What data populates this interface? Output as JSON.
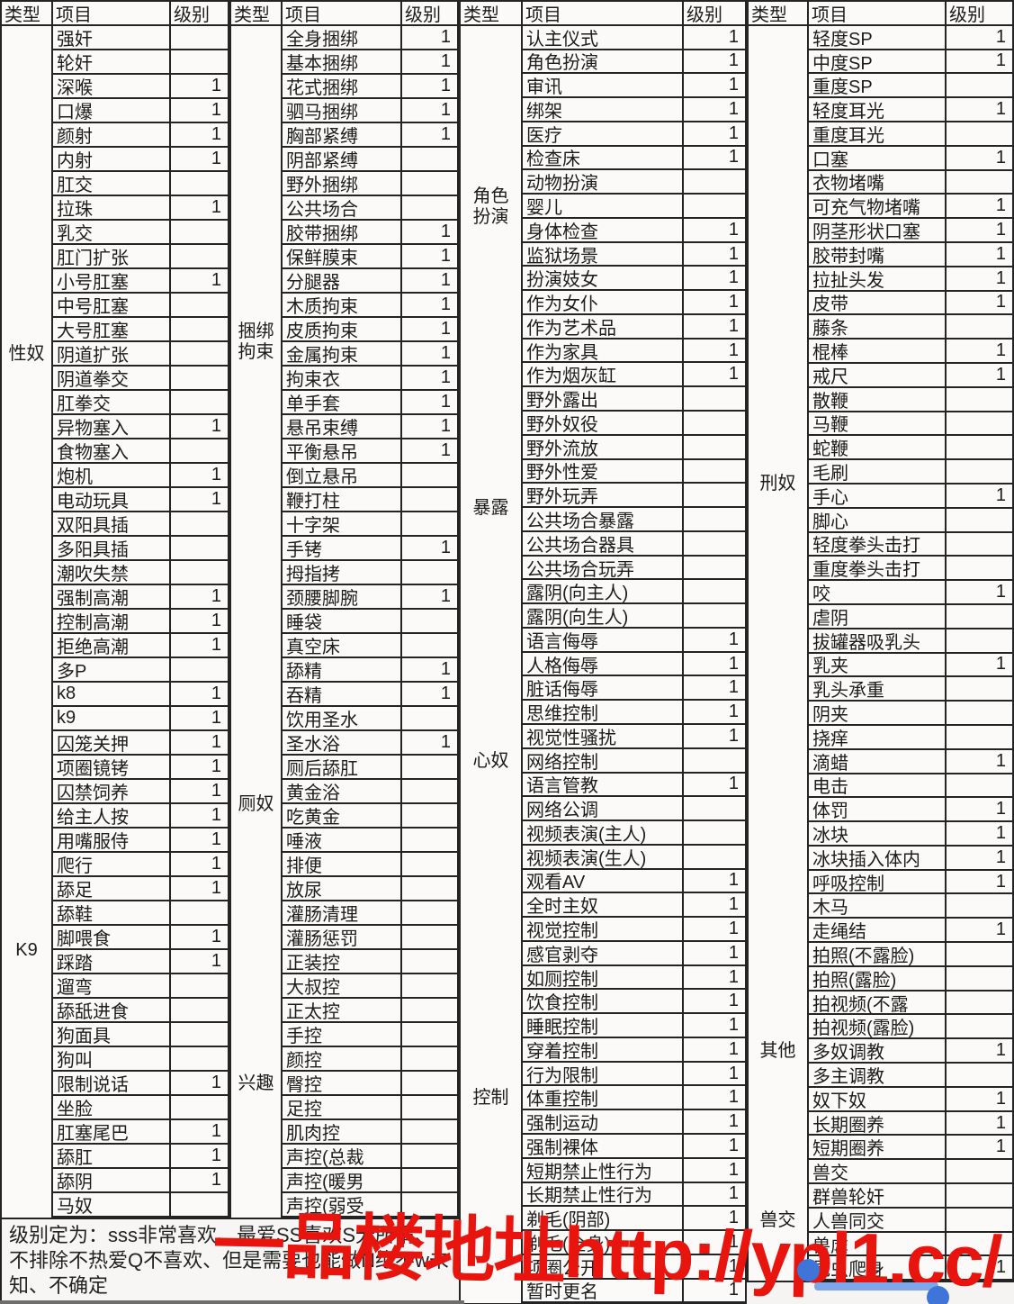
{
  "header": {
    "type": "类型",
    "item": "项目",
    "level": "级别"
  },
  "legend": {
    "text": "级别定为：sss非常喜欢、最爱SS喜欢S无所谓、不排除不热爱Q不喜欢、但是需要也能做N绝不w未知、不确定"
  },
  "watermark": {
    "text": "一品楼地址http://ypl1.cc/",
    "color": "#e8140e"
  },
  "selection": {
    "accent_color": "#3f74d8"
  },
  "columns": [
    {
      "sections": [
        {
          "category": "性奴",
          "items": [
            [
              "强奸",
              ""
            ],
            [
              "轮奸",
              ""
            ],
            [
              "深喉",
              "1"
            ],
            [
              "口爆",
              "1"
            ],
            [
              "颜射",
              "1"
            ],
            [
              "内射",
              "1"
            ],
            [
              "肛交",
              ""
            ],
            [
              "拉珠",
              "1"
            ],
            [
              "乳交",
              ""
            ],
            [
              "肛门扩张",
              ""
            ],
            [
              "小号肛塞",
              "1"
            ],
            [
              "中号肛塞",
              ""
            ],
            [
              "大号肛塞",
              ""
            ],
            [
              "阴道扩张",
              ""
            ],
            [
              "阴道拳交",
              ""
            ],
            [
              "肛拳交",
              ""
            ],
            [
              "异物塞入",
              "1"
            ],
            [
              "食物塞入",
              ""
            ],
            [
              "炮机",
              "1"
            ],
            [
              "电动玩具",
              "1"
            ],
            [
              "双阳具插",
              ""
            ],
            [
              "多阳具插",
              ""
            ],
            [
              "潮吹失禁",
              ""
            ],
            [
              "强制高潮",
              "1"
            ],
            [
              "控制高潮",
              "1"
            ],
            [
              "拒绝高潮",
              "1"
            ],
            [
              "多P",
              ""
            ]
          ]
        },
        {
          "category": "K9",
          "items": [
            [
              "k8",
              "1"
            ],
            [
              "k9",
              "1"
            ],
            [
              "囚笼关押",
              "1"
            ],
            [
              "项圈镜铐",
              "1"
            ],
            [
              "囚禁饲养",
              "1"
            ],
            [
              "给主人按",
              "1"
            ],
            [
              "用嘴服侍",
              "1"
            ],
            [
              "爬行",
              "1"
            ],
            [
              "舔足",
              "1"
            ],
            [
              "舔鞋",
              ""
            ],
            [
              "脚喂食",
              "1"
            ],
            [
              "踩踏",
              "1"
            ],
            [
              "遛弯",
              ""
            ],
            [
              "舔舐进食",
              ""
            ],
            [
              "狗面具",
              ""
            ],
            [
              "狗叫",
              ""
            ],
            [
              "限制说话",
              "1"
            ],
            [
              "坐脸",
              ""
            ],
            [
              "肛塞尾巴",
              "1"
            ],
            [
              "舔肛",
              "1"
            ],
            [
              "舔阴",
              "1"
            ],
            [
              "马奴",
              ""
            ]
          ]
        }
      ]
    },
    {
      "sections": [
        {
          "category": "捆绑拘束",
          "items": [
            [
              "全身捆绑",
              "1"
            ],
            [
              "基本捆绑",
              "1"
            ],
            [
              "花式捆绑",
              "1"
            ],
            [
              "驷马捆绑",
              "1"
            ],
            [
              "胸部紧缚",
              "1"
            ],
            [
              "阴部紧缚",
              ""
            ],
            [
              "野外捆绑",
              ""
            ],
            [
              "公共场合",
              ""
            ],
            [
              "胶带捆绑",
              "1"
            ],
            [
              "保鲜膜束",
              "1"
            ],
            [
              "分腿器",
              "1"
            ],
            [
              "木质拘束",
              "1"
            ],
            [
              "皮质拘束",
              "1"
            ],
            [
              "金属拘束",
              "1"
            ],
            [
              "拘束衣",
              "1"
            ],
            [
              "单手套",
              "1"
            ],
            [
              "悬吊束缚",
              "1"
            ],
            [
              "平衡悬吊",
              "1"
            ],
            [
              "倒立悬吊",
              ""
            ],
            [
              "鞭打柱",
              ""
            ],
            [
              "十字架",
              ""
            ],
            [
              "手铐",
              "1"
            ],
            [
              "拇指拷",
              ""
            ],
            [
              "颈腰脚腕",
              "1"
            ],
            [
              "睡袋",
              ""
            ],
            [
              "真空床",
              ""
            ]
          ]
        },
        {
          "category": "厕奴",
          "items": [
            [
              "舔精",
              "1"
            ],
            [
              "吞精",
              "1"
            ],
            [
              "饮用圣水",
              ""
            ],
            [
              "圣水浴",
              "1"
            ],
            [
              "厕后舔肛",
              ""
            ],
            [
              "黄金浴",
              ""
            ],
            [
              "吃黄金",
              ""
            ],
            [
              "唾液",
              ""
            ],
            [
              "排便",
              ""
            ],
            [
              "放尿",
              ""
            ],
            [
              "灌肠清理",
              ""
            ],
            [
              "灌肠惩罚",
              ""
            ]
          ]
        },
        {
          "category": "兴趣",
          "items": [
            [
              "正装控",
              ""
            ],
            [
              "大叔控",
              ""
            ],
            [
              "正太控",
              ""
            ],
            [
              "手控",
              ""
            ],
            [
              "颜控",
              ""
            ],
            [
              "臀控",
              ""
            ],
            [
              "足控",
              ""
            ],
            [
              "肌肉控",
              ""
            ],
            [
              "声控(总裁",
              ""
            ],
            [
              "声控(暖男",
              ""
            ],
            [
              "声控(弱受",
              ""
            ]
          ]
        }
      ]
    },
    {
      "sections": [
        {
          "category": "角色扮演",
          "items": [
            [
              "认主仪式",
              "1"
            ],
            [
              "角色扮演",
              "1"
            ],
            [
              "审讯",
              "1"
            ],
            [
              "绑架",
              "1"
            ],
            [
              "医疗",
              "1"
            ],
            [
              "检查床",
              "1"
            ],
            [
              "动物扮演",
              ""
            ],
            [
              "婴儿",
              ""
            ],
            [
              "身体检查",
              "1"
            ],
            [
              "监狱场景",
              "1"
            ],
            [
              "扮演妓女",
              "1"
            ],
            [
              "作为女仆",
              "1"
            ],
            [
              "作为艺术品",
              "1"
            ],
            [
              "作为家具",
              "1"
            ],
            [
              "作为烟灰缸",
              "1"
            ]
          ]
        },
        {
          "category": "暴露",
          "items": [
            [
              "野外露出",
              ""
            ],
            [
              "野外奴役",
              ""
            ],
            [
              "野外流放",
              ""
            ],
            [
              "野外性爱",
              ""
            ],
            [
              "野外玩弄",
              ""
            ],
            [
              "公共场合暴露",
              ""
            ],
            [
              "公共场合器具",
              ""
            ],
            [
              "公共场合玩弄",
              ""
            ],
            [
              "露阴(向主人)",
              ""
            ],
            [
              "露阴(向生人)",
              ""
            ]
          ]
        },
        {
          "category": "心奴",
          "items": [
            [
              "语言侮辱",
              "1"
            ],
            [
              "人格侮辱",
              "1"
            ],
            [
              "脏话侮辱",
              "1"
            ],
            [
              "思维控制",
              "1"
            ],
            [
              "视觉性骚扰",
              "1"
            ],
            [
              "网络控制",
              ""
            ],
            [
              "语言管教",
              "1"
            ],
            [
              "网络公调",
              ""
            ],
            [
              "视频表演(主人)",
              ""
            ],
            [
              "视频表演(生人)",
              ""
            ],
            [
              "观看AV",
              "1"
            ]
          ]
        },
        {
          "category": "控制",
          "items": [
            [
              "全时主奴",
              "1"
            ],
            [
              "视觉控制",
              "1"
            ],
            [
              "感官剥夺",
              "1"
            ],
            [
              "如厕控制",
              "1"
            ],
            [
              "饮食控制",
              "1"
            ],
            [
              "睡眠控制",
              "1"
            ],
            [
              "穿着控制",
              "1"
            ],
            [
              "行为限制",
              "1"
            ],
            [
              "体重控制",
              "1"
            ],
            [
              "强制运动",
              "1"
            ],
            [
              "强制裸体",
              "1"
            ],
            [
              "短期禁止性行为",
              "1"
            ],
            [
              "长期禁止性行为",
              "1"
            ],
            [
              "剃毛(阴部)",
              "1"
            ],
            [
              "剃毛(全身)",
              "1"
            ],
            [
              "项圈公开",
              "1"
            ],
            [
              "暂时更名",
              "1"
            ]
          ]
        }
      ]
    },
    {
      "sections": [
        {
          "category": "刑奴",
          "items": [
            [
              "轻度SP",
              "1"
            ],
            [
              "中度SP",
              "1"
            ],
            [
              "重度SP",
              ""
            ],
            [
              "轻度耳光",
              "1"
            ],
            [
              "重度耳光",
              ""
            ],
            [
              "口塞",
              "1"
            ],
            [
              "衣物堵嘴",
              ""
            ],
            [
              "可充气物堵嘴",
              "1"
            ],
            [
              "阴茎形状口塞",
              "1"
            ],
            [
              "胶带封嘴",
              "1"
            ],
            [
              "拉扯头发",
              "1"
            ],
            [
              "皮带",
              "1"
            ],
            [
              "藤条",
              ""
            ],
            [
              "棍棒",
              "1"
            ],
            [
              "戒尺",
              "1"
            ],
            [
              "散鞭",
              ""
            ],
            [
              "马鞭",
              ""
            ],
            [
              "蛇鞭",
              ""
            ],
            [
              "毛刷",
              ""
            ],
            [
              "手心",
              "1"
            ],
            [
              "脚心",
              ""
            ],
            [
              "轻度拳头击打",
              ""
            ],
            [
              "重度拳头击打",
              ""
            ],
            [
              "咬",
              "1"
            ],
            [
              "虐阴",
              ""
            ],
            [
              "拔罐器吸乳头",
              ""
            ],
            [
              "乳夹",
              "1"
            ],
            [
              "乳头承重",
              ""
            ],
            [
              "阴夹",
              ""
            ],
            [
              "挠痒",
              ""
            ],
            [
              "滴蜡",
              "1"
            ],
            [
              "电击",
              ""
            ],
            [
              "体罚",
              "1"
            ],
            [
              "冰块",
              "1"
            ],
            [
              "冰块插入体内",
              "1"
            ],
            [
              "呼吸控制",
              "1"
            ],
            [
              "木马",
              ""
            ],
            [
              "走绳结",
              "1"
            ]
          ]
        },
        {
          "category": "其他",
          "items": [
            [
              "拍照(不露脸)",
              ""
            ],
            [
              "拍照(露脸)",
              ""
            ],
            [
              "拍视频(不露",
              ""
            ],
            [
              "拍视频(露脸)",
              ""
            ],
            [
              "多奴调教",
              "1"
            ],
            [
              "多主调教",
              ""
            ],
            [
              "奴下奴",
              "1"
            ],
            [
              "长期圈养",
              "1"
            ],
            [
              "短期圈养",
              "1"
            ]
          ]
        },
        {
          "category": "兽交",
          "items": [
            [
              "兽交",
              ""
            ],
            [
              "群兽轮奸",
              ""
            ],
            [
              "人兽同交",
              ""
            ],
            [
              "兽虐",
              ""
            ],
            [
              "昆虫爬身",
              "1"
            ]
          ]
        }
      ]
    }
  ]
}
